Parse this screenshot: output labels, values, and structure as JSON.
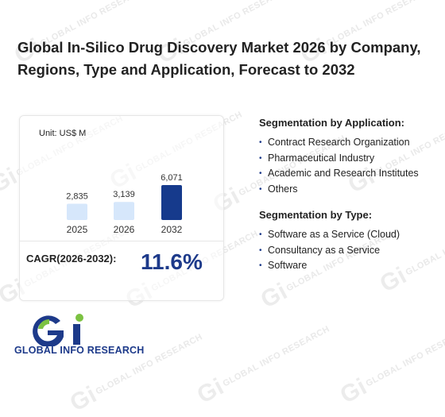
{
  "title": "Global In-Silico Drug Discovery Market 2026 by Company, Regions, Type and Application, Forecast to 2032",
  "watermark_text": "GLOBAL INFO RESEARCH",
  "chart_data": {
    "type": "bar",
    "unit": "Unit: US$ M",
    "categories": [
      "2025",
      "2026",
      "2032"
    ],
    "values": [
      2835,
      3139,
      6071
    ],
    "value_labels": [
      "2,835",
      "3,139",
      "6,071"
    ],
    "ylim": [
      0,
      6071
    ],
    "bar_colors": [
      "#d6e7fb",
      "#d6e7fb",
      "#163a8c"
    ],
    "grid": false,
    "legend": "none"
  },
  "cagr": {
    "label": "CAGR(2026-2032):",
    "value": "11.6%"
  },
  "segments": {
    "application": {
      "heading": "Segmentation by Application:",
      "items": [
        "Contract Research Organization",
        "Pharmaceutical Industry",
        "Academic and Research Institutes",
        "Others"
      ]
    },
    "type": {
      "heading": "Segmentation by Type:",
      "items": [
        "Software as a Service (Cloud)",
        "Consultancy as a Service",
        "Software"
      ]
    }
  },
  "logo": {
    "text": "GLOBAL INFO RESEARCH",
    "colors": {
      "primary": "#1d3a8a",
      "accent": "#7cc242"
    }
  }
}
